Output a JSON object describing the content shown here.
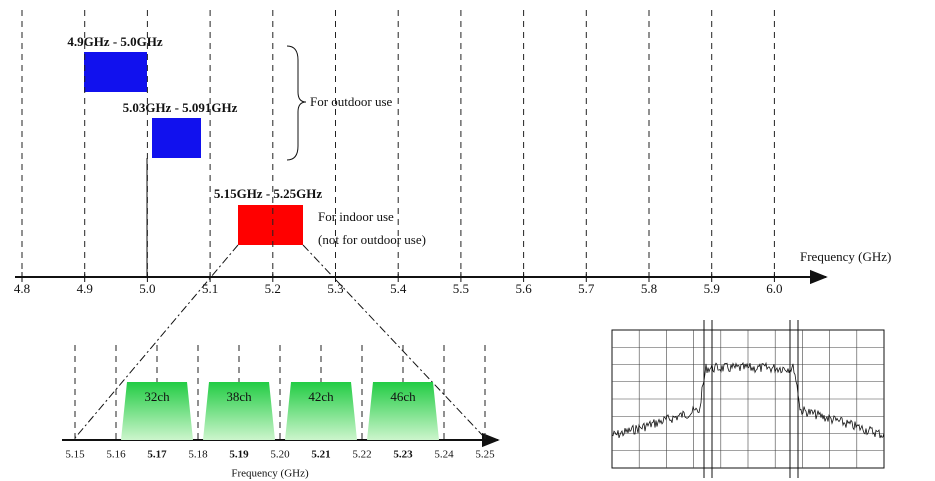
{
  "top_axis": {
    "label": "Frequency (GHz)",
    "ticks": [
      "4.8",
      "4.9",
      "5.0",
      "5.1",
      "5.2",
      "5.3",
      "5.4",
      "5.5",
      "5.6",
      "5.7",
      "5.8",
      "5.9",
      "6.0"
    ]
  },
  "bands": [
    {
      "label": "4.9GHz - 5.0GHz"
    },
    {
      "label": "5.03GHz - 5.091GHz"
    },
    {
      "label": "5.15GHz - 5.25GHz"
    }
  ],
  "annotations": {
    "outdoor": "For outdoor use",
    "indoor": [
      "For indoor use",
      "(not for outdoor use)"
    ]
  },
  "zoom_axis": {
    "label": "Frequency (GHz)",
    "ticks": [
      "5.15",
      "5.16",
      "5.17",
      "5.18",
      "5.19",
      "5.20",
      "5.21",
      "5.22",
      "5.23",
      "5.24",
      "5.25"
    ]
  },
  "channels": [
    "32ch",
    "38ch",
    "42ch",
    "46ch"
  ]
}
